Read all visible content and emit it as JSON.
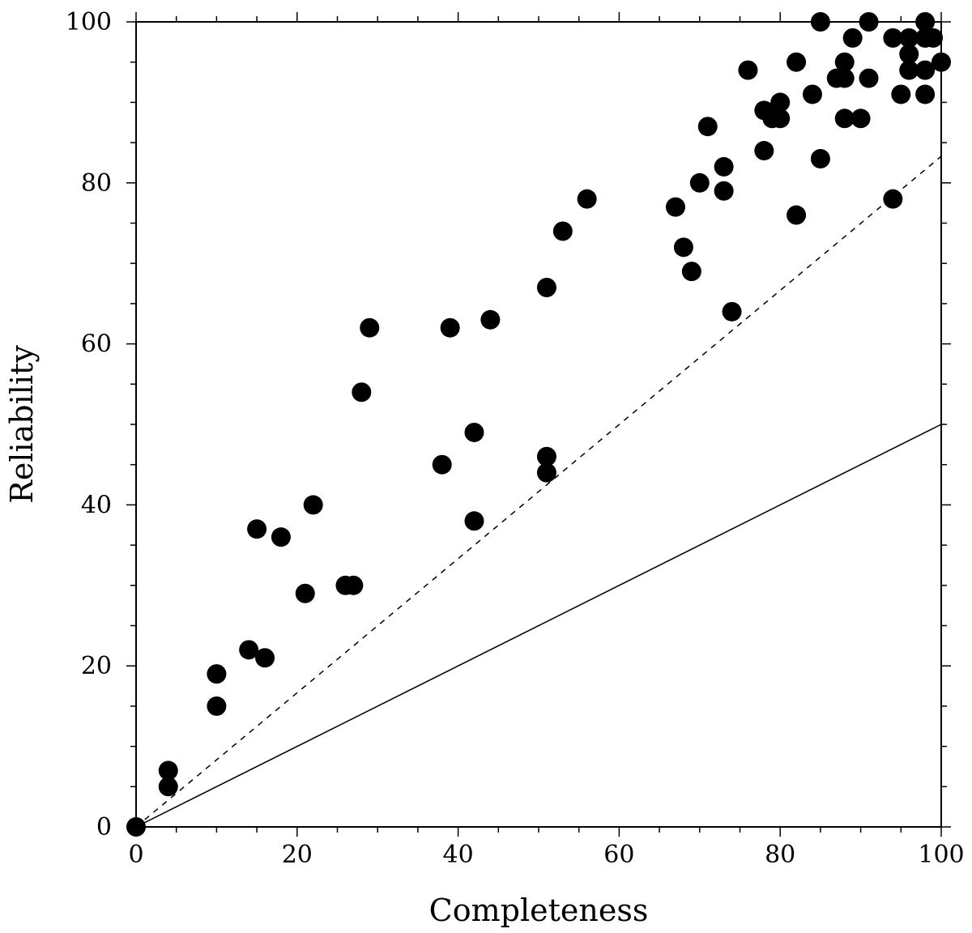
{
  "chart_data": {
    "type": "scatter",
    "xlabel": "Completeness",
    "ylabel": "Reliability",
    "xlim": [
      0,
      100
    ],
    "ylim": [
      0,
      100
    ],
    "xticks": [
      0,
      20,
      40,
      60,
      80,
      100
    ],
    "yticks": [
      0,
      20,
      40,
      60,
      80,
      100
    ],
    "minor_tick_step": 5,
    "grid": false,
    "legend": "none",
    "colors": {
      "points": "#000000",
      "lines": "#000000",
      "background": "#ffffff"
    },
    "series": [
      {
        "kind": "scatter",
        "points": [
          [
            0,
            0
          ],
          [
            4,
            7
          ],
          [
            4,
            5
          ],
          [
            10,
            19
          ],
          [
            10,
            15
          ],
          [
            14,
            22
          ],
          [
            15,
            37
          ],
          [
            16,
            21
          ],
          [
            18,
            36
          ],
          [
            21,
            29
          ],
          [
            22,
            40
          ],
          [
            26,
            30
          ],
          [
            27,
            30
          ],
          [
            28,
            54
          ],
          [
            29,
            62
          ],
          [
            38,
            45
          ],
          [
            39,
            62
          ],
          [
            42,
            49
          ],
          [
            42,
            38
          ],
          [
            44,
            63
          ],
          [
            51,
            67
          ],
          [
            51,
            46
          ],
          [
            51,
            44
          ],
          [
            53,
            74
          ],
          [
            56,
            78
          ],
          [
            67,
            77
          ],
          [
            68,
            72
          ],
          [
            69,
            69
          ],
          [
            70,
            80
          ],
          [
            71,
            87
          ],
          [
            73,
            82
          ],
          [
            73,
            79
          ],
          [
            74,
            64
          ],
          [
            76,
            94
          ],
          [
            78,
            89
          ],
          [
            78,
            84
          ],
          [
            79,
            88
          ],
          [
            80,
            90
          ],
          [
            80,
            88
          ],
          [
            82,
            95
          ],
          [
            82,
            76
          ],
          [
            84,
            91
          ],
          [
            85,
            100
          ],
          [
            85,
            83
          ],
          [
            87,
            93
          ],
          [
            88,
            95
          ],
          [
            88,
            93
          ],
          [
            88,
            88
          ],
          [
            89,
            98
          ],
          [
            90,
            88
          ],
          [
            91,
            100
          ],
          [
            91,
            93
          ],
          [
            94,
            98
          ],
          [
            94,
            78
          ],
          [
            95,
            91
          ],
          [
            96,
            98
          ],
          [
            96,
            96
          ],
          [
            96,
            94
          ],
          [
            98,
            100
          ],
          [
            98,
            98
          ],
          [
            98,
            94
          ],
          [
            98,
            91
          ],
          [
            99,
            98
          ],
          [
            100,
            95
          ]
        ]
      },
      {
        "kind": "line",
        "style": "dashed",
        "points": [
          [
            0,
            0
          ],
          [
            100,
            83.3
          ]
        ]
      },
      {
        "kind": "line",
        "style": "solid",
        "points": [
          [
            0,
            0
          ],
          [
            100,
            50
          ]
        ]
      }
    ]
  }
}
